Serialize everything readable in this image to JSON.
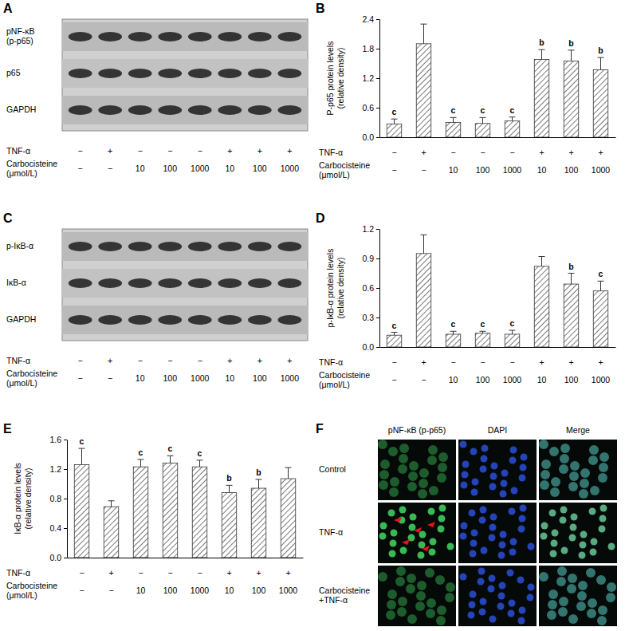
{
  "chart_data": [
    {
      "type": "bar",
      "panel": "B",
      "ylabel": [
        "P-p65 protein levels",
        "(relative density)"
      ],
      "categories": [
        null,
        null,
        null,
        null,
        null,
        null,
        null,
        null
      ],
      "values": [
        0.27,
        1.9,
        0.3,
        0.28,
        0.33,
        1.58,
        1.55,
        1.37
      ],
      "errors": [
        0.1,
        0.4,
        0.1,
        0.12,
        0.08,
        0.2,
        0.22,
        0.25
      ],
      "annotations": [
        "c",
        null,
        "c",
        "c",
        "c",
        "b",
        "b",
        "b"
      ],
      "color": "#555555",
      "ylim": [
        0,
        2.4
      ],
      "yticks": [
        {
          "value": 0,
          "label": "0.0"
        },
        0.6,
        1.2,
        1.8,
        2.4
      ],
      "conditions": [
        {
          "label": "TNF-α",
          "values": [
            "−",
            "+",
            "−",
            "−",
            "−",
            "+",
            "+",
            "+"
          ]
        },
        {
          "label": [
            "Carbocisteine",
            "(μmol/L)"
          ],
          "values": [
            "−",
            "−",
            "10",
            "100",
            "1000",
            "10",
            "100",
            "1000"
          ]
        }
      ]
    },
    {
      "type": "bar",
      "panel": "D",
      "ylabel": [
        "p-IκB-α protein levels",
        "(relative density)"
      ],
      "categories": [
        null,
        null,
        null,
        null,
        null,
        null,
        null,
        null
      ],
      "values": [
        0.12,
        0.95,
        0.13,
        0.14,
        0.13,
        0.82,
        0.64,
        0.57
      ],
      "errors": [
        0.03,
        0.19,
        0.03,
        0.02,
        0.04,
        0.1,
        0.11,
        0.1
      ],
      "annotations": [
        "c",
        null,
        "c",
        "c",
        "c",
        null,
        "b",
        "c"
      ],
      "color": "#555555",
      "ylim": [
        0,
        1.2
      ],
      "yticks": [
        {
          "value": 0,
          "label": "0.0"
        },
        0.3,
        0.6,
        0.9,
        1.2
      ],
      "conditions": [
        {
          "label": "TNF-α",
          "values": [
            "−",
            "+",
            "−",
            "−",
            "−",
            "+",
            "+",
            "+"
          ]
        },
        {
          "label": [
            "Carbocisteine",
            "(μmol/L)"
          ],
          "values": [
            "−",
            "−",
            "10",
            "100",
            "1000",
            "10",
            "100",
            "1000"
          ]
        }
      ]
    },
    {
      "type": "bar",
      "panel": "E",
      "ylabel": [
        "IκB-α protein levels",
        "(relative density)"
      ],
      "categories": [
        null,
        null,
        null,
        null,
        null,
        null,
        null,
        null
      ],
      "values": [
        1.26,
        0.69,
        1.23,
        1.28,
        1.23,
        0.88,
        0.94,
        1.07
      ],
      "errors": [
        0.22,
        0.08,
        0.1,
        0.1,
        0.09,
        0.1,
        0.12,
        0.15
      ],
      "annotations": [
        "c",
        null,
        "c",
        "c",
        "c",
        "b",
        "b",
        null
      ],
      "color": "#555555",
      "ylim": [
        0,
        1.6
      ],
      "yticks": [
        {
          "value": 0,
          "label": "0.0"
        },
        0.4,
        0.8,
        1.2,
        1.6
      ],
      "conditions": [
        {
          "label": "TNF-α",
          "values": [
            "−",
            "+",
            "−",
            "−",
            "−",
            "+",
            "+",
            "+"
          ]
        },
        {
          "label": [
            "Carbocisteine",
            "(μmol/L)"
          ],
          "values": [
            "−",
            "−",
            "10",
            "100",
            "1000",
            "10",
            "100",
            "1000"
          ]
        }
      ]
    }
  ],
  "blots": [
    {
      "panel": "A",
      "rows": [
        [
          "pNF-κB",
          "(p-p65)"
        ],
        "p65",
        "GAPDH"
      ],
      "conditions": [
        {
          "label": "TNF-α",
          "values": [
            "−",
            "+",
            "−",
            "−",
            "−",
            "+",
            "+",
            "+"
          ]
        },
        {
          "label": [
            "Carbocisteine",
            "(μmol/L)"
          ],
          "values": [
            "−",
            "−",
            "10",
            "100",
            "1000",
            "10",
            "100",
            "1000"
          ]
        }
      ]
    },
    {
      "panel": "C",
      "rows": [
        "p-IκB-α",
        "IκB-α",
        "GAPDH"
      ],
      "conditions": [
        {
          "label": "TNF-α",
          "values": [
            "−",
            "+",
            "−",
            "−",
            "−",
            "+",
            "+",
            "+"
          ]
        },
        {
          "label": [
            "Carbocisteine",
            "(μmol/L)"
          ],
          "values": [
            "−",
            "−",
            "10",
            "100",
            "1000",
            "10",
            "100",
            "1000"
          ]
        }
      ]
    }
  ],
  "images": {
    "panel": "F",
    "columns": [
      "pNF-κB (p-p65)",
      "DAPI",
      "Merge"
    ],
    "rows": [
      "Control",
      "TNF-α",
      [
        "Carbocisteine",
        "+TNF-α"
      ]
    ]
  }
}
